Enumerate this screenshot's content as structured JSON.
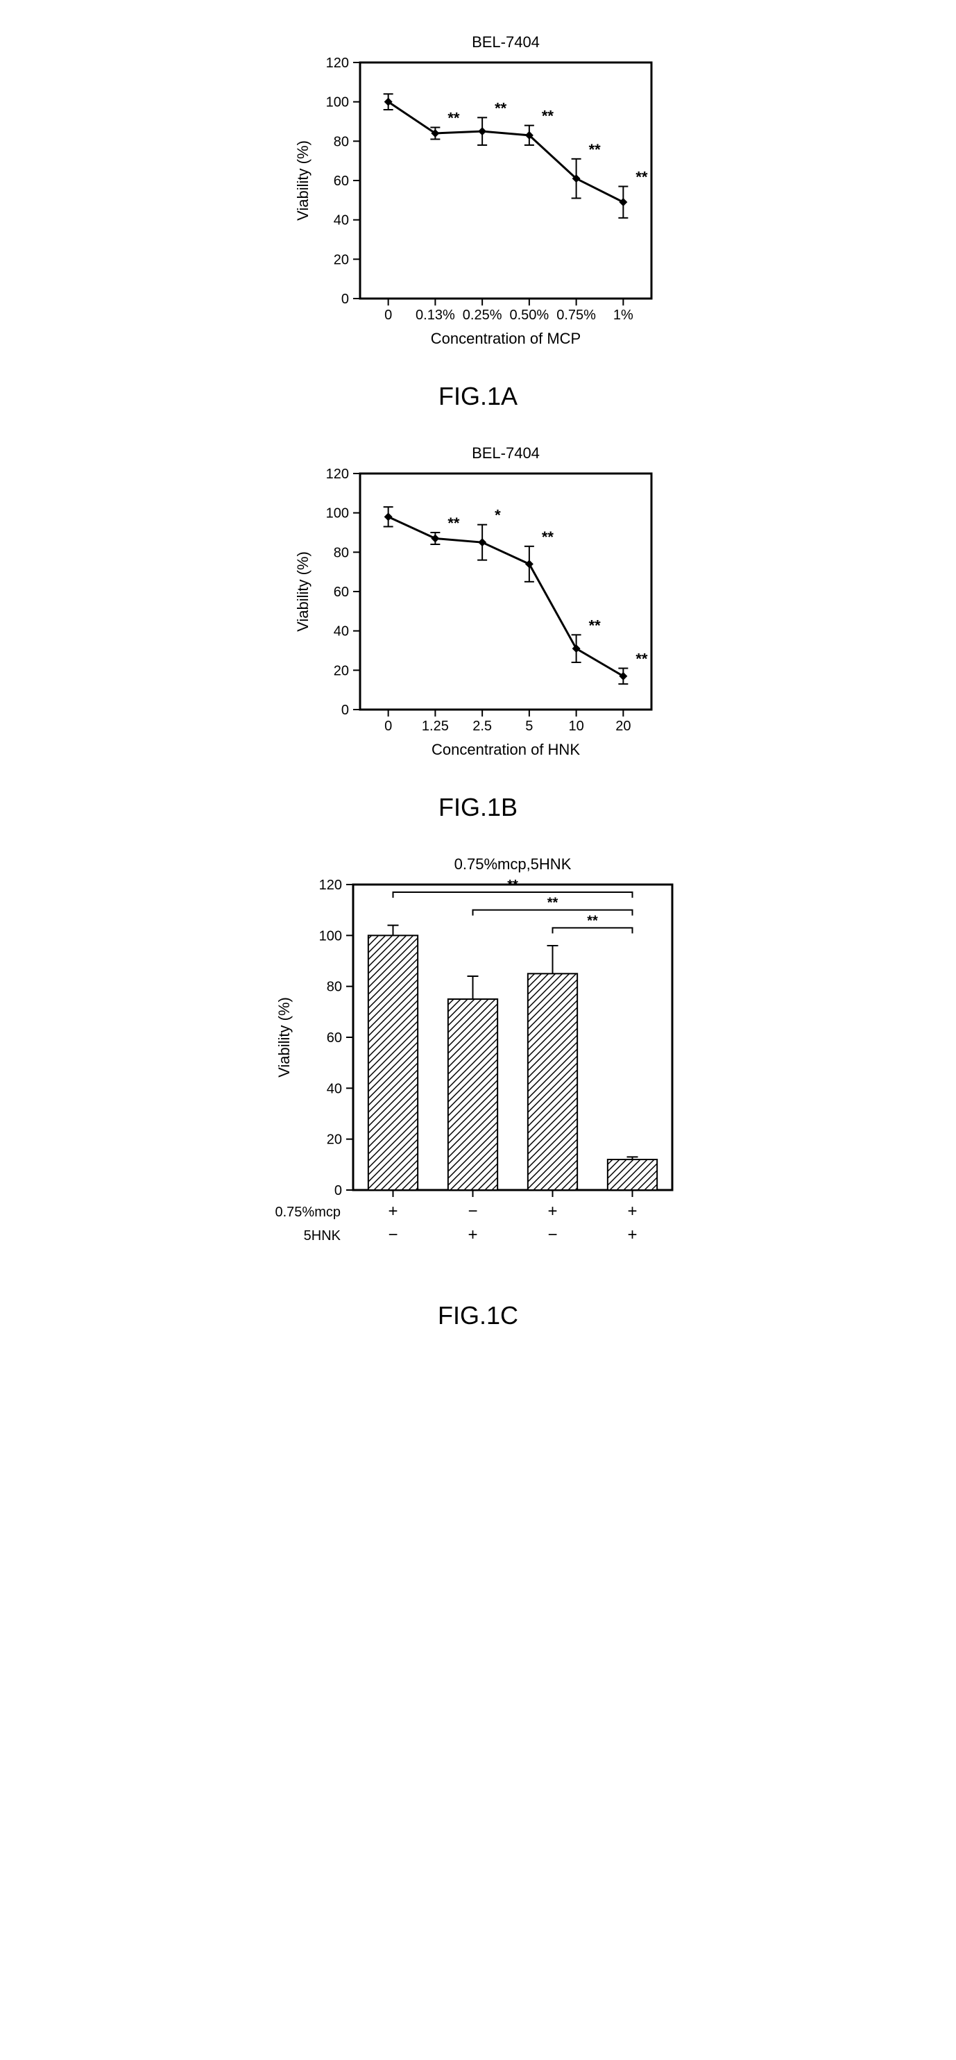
{
  "colors": {
    "black": "#000000",
    "white": "#ffffff"
  },
  "chartA": {
    "type": "line",
    "title": "BEL-7404",
    "title_fontsize": 22,
    "ylabel": "Viability (%)",
    "xlabel": "Concentration of MCP",
    "label_fontsize": 22,
    "tick_fontsize": 20,
    "xticks": [
      "0",
      "0.13%",
      "0.25%",
      "0.50%",
      "0.75%",
      "1%"
    ],
    "ylim": [
      0,
      120
    ],
    "ytick_step": 20,
    "yticks": [
      0,
      20,
      40,
      60,
      80,
      100,
      120
    ],
    "points": [
      {
        "x": 0,
        "y": 100,
        "err": 4,
        "sig": ""
      },
      {
        "x": 1,
        "y": 84,
        "err": 3,
        "sig": "**"
      },
      {
        "x": 2,
        "y": 85,
        "err": 7,
        "sig": "**"
      },
      {
        "x": 3,
        "y": 83,
        "err": 5,
        "sig": "**"
      },
      {
        "x": 4,
        "y": 61,
        "err": 10,
        "sig": "**"
      },
      {
        "x": 5,
        "y": 49,
        "err": 8,
        "sig": "**"
      }
    ],
    "line_width": 3,
    "marker": "diamond",
    "marker_size": 12,
    "fig_label": "FIG.1A"
  },
  "chartB": {
    "type": "line",
    "title": "BEL-7404",
    "title_fontsize": 22,
    "ylabel": "Viability (%)",
    "xlabel": "Concentration of HNK",
    "label_fontsize": 22,
    "tick_fontsize": 20,
    "xticks": [
      "0",
      "1.25",
      "2.5",
      "5",
      "10",
      "20"
    ],
    "ylim": [
      0,
      120
    ],
    "ytick_step": 20,
    "yticks": [
      0,
      20,
      40,
      60,
      80,
      100,
      120
    ],
    "points": [
      {
        "x": 0,
        "y": 98,
        "err": 5,
        "sig": ""
      },
      {
        "x": 1,
        "y": 87,
        "err": 3,
        "sig": "**"
      },
      {
        "x": 2,
        "y": 85,
        "err": 9,
        "sig": "*"
      },
      {
        "x": 3,
        "y": 74,
        "err": 9,
        "sig": "**"
      },
      {
        "x": 4,
        "y": 31,
        "err": 7,
        "sig": "**"
      },
      {
        "x": 5,
        "y": 17,
        "err": 4,
        "sig": "**"
      }
    ],
    "line_width": 3,
    "marker": "diamond",
    "marker_size": 12,
    "fig_label": "FIG.1B"
  },
  "chartC": {
    "type": "bar",
    "title": "0.75%mcp,5HNK",
    "title_fontsize": 22,
    "ylabel": "Viability (%)",
    "label_fontsize": 22,
    "tick_fontsize": 20,
    "ylim": [
      0,
      120
    ],
    "ytick_step": 20,
    "yticks": [
      0,
      20,
      40,
      60,
      80,
      100,
      120
    ],
    "bars": [
      {
        "x": 0,
        "y": 100,
        "err": 4
      },
      {
        "x": 1,
        "y": 75,
        "err": 9
      },
      {
        "x": 2,
        "y": 85,
        "err": 11
      },
      {
        "x": 3,
        "y": 12,
        "err": 1
      }
    ],
    "bar_width": 0.62,
    "bar_fill": "hatch-diagonal",
    "condition_rows": [
      {
        "label": "0.75%mcp",
        "marks": [
          "+",
          "−",
          "+",
          "+"
        ]
      },
      {
        "label": "5HNK",
        "marks": [
          "−",
          "+",
          "−",
          "+"
        ]
      }
    ],
    "sig_brackets": [
      {
        "from": 0,
        "to": 3,
        "y": 117,
        "label": "**"
      },
      {
        "from": 1,
        "to": 3,
        "y": 110,
        "label": "**"
      },
      {
        "from": 2,
        "to": 3,
        "y": 103,
        "label": "**"
      }
    ],
    "fig_label": "FIG.1C"
  }
}
